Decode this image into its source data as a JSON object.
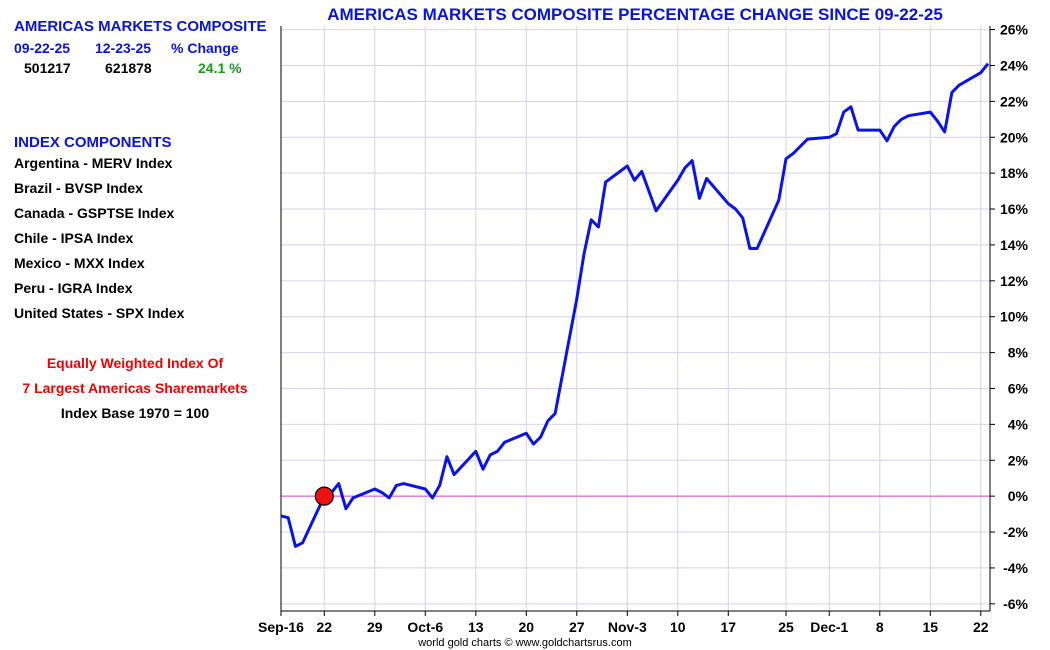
{
  "info": {
    "title": "AMERICAS MARKETS COMPOSITE",
    "col_start": "09-22-25",
    "col_end": "12-23-25",
    "col_change": "% Change",
    "val_start": "501217",
    "val_end": "621878",
    "val_change": "24.1 %",
    "components_title": "INDEX COMPONENTS",
    "components": [
      "Argentina - MERV Index",
      "Brazil - BVSP Index",
      "Canada - GSPTSE Index",
      "Chile - IPSA Index",
      "Mexico - MXX Index",
      "Peru - IGRA Index",
      "United States - SPX Index"
    ],
    "note_line1": "Equally Weighted Index Of",
    "note_line2": "7 Largest Americas Sharemarkets",
    "note_line3": "Index Base 1970 = 100"
  },
  "colors": {
    "title_blue": "#0a14d6",
    "line_blue": "#0a14e6",
    "gain_green": "#1a9a1a",
    "note_red": "#ee0000",
    "zero_line": "#cc44cc",
    "grid": "#d4d4ee",
    "marker_fill": "#ee1111"
  },
  "credit": "world gold charts © www.goldchartsrus.com",
  "chart_data": {
    "type": "line",
    "title": "AMERICAS MARKETS COMPOSITE PERCENTAGE CHANGE SINCE 09-22-25",
    "xlabel": "",
    "ylabel": "",
    "ylim": [
      -6.4,
      26.2
    ],
    "y_ticks": [
      26,
      24,
      22,
      20,
      18,
      16,
      14,
      12,
      10,
      8,
      6,
      4,
      2,
      0,
      -2,
      -4,
      -6
    ],
    "y_tick_labels": [
      "26%",
      "24%",
      "22%",
      "20%",
      "18%",
      "16%",
      "14%",
      "12%",
      "10%",
      "8%",
      "6%",
      "4%",
      "2%",
      "0%",
      "-2%",
      "-4%",
      "-6%"
    ],
    "y_axis_position": "right",
    "x_range": [
      "2025-09-16",
      "2025-12-23"
    ],
    "x_ticks": [
      "2025-09-16",
      "2025-09-22",
      "2025-09-29",
      "2025-10-06",
      "2025-10-13",
      "2025-10-20",
      "2025-10-27",
      "2025-11-03",
      "2025-11-10",
      "2025-11-17",
      "2025-11-25",
      "2025-12-01",
      "2025-12-08",
      "2025-12-15",
      "2025-12-22"
    ],
    "x_tick_labels": [
      "Sep-16",
      "22",
      "29",
      "Oct-6",
      "13",
      "20",
      "27",
      "Nov-3",
      "10",
      "17",
      "25",
      "Dec-1",
      "8",
      "15",
      "22"
    ],
    "grid": true,
    "reference_line": 0,
    "marker": {
      "x": "2025-09-22",
      "y": 0
    },
    "series": [
      {
        "points": [
          [
            "2025-09-16",
            -1.1
          ],
          [
            "2025-09-17",
            -1.2
          ],
          [
            "2025-09-18",
            -2.8
          ],
          [
            "2025-09-19",
            -2.6
          ],
          [
            "2025-09-22",
            0.0
          ],
          [
            "2025-09-23",
            0.2
          ],
          [
            "2025-09-24",
            0.7
          ],
          [
            "2025-09-25",
            -0.7
          ],
          [
            "2025-09-26",
            -0.1
          ],
          [
            "2025-09-29",
            0.4
          ],
          [
            "2025-09-30",
            0.2
          ],
          [
            "2025-10-01",
            -0.1
          ],
          [
            "2025-10-02",
            0.6
          ],
          [
            "2025-10-03",
            0.7
          ],
          [
            "2025-10-06",
            0.4
          ],
          [
            "2025-10-07",
            -0.1
          ],
          [
            "2025-10-08",
            0.6
          ],
          [
            "2025-10-09",
            2.2
          ],
          [
            "2025-10-10",
            1.2
          ],
          [
            "2025-10-13",
            2.5
          ],
          [
            "2025-10-14",
            1.5
          ],
          [
            "2025-10-15",
            2.3
          ],
          [
            "2025-10-16",
            2.5
          ],
          [
            "2025-10-17",
            3.0
          ],
          [
            "2025-10-20",
            3.5
          ],
          [
            "2025-10-21",
            2.9
          ],
          [
            "2025-10-22",
            3.3
          ],
          [
            "2025-10-23",
            4.2
          ],
          [
            "2025-10-24",
            4.6
          ],
          [
            "2025-10-27",
            11.0
          ],
          [
            "2025-10-28",
            13.5
          ],
          [
            "2025-10-29",
            15.4
          ],
          [
            "2025-10-30",
            15.0
          ],
          [
            "2025-10-31",
            17.5
          ],
          [
            "2025-11-03",
            18.4
          ],
          [
            "2025-11-04",
            17.6
          ],
          [
            "2025-11-05",
            18.1
          ],
          [
            "2025-11-06",
            17.0
          ],
          [
            "2025-11-07",
            15.9
          ],
          [
            "2025-11-10",
            17.6
          ],
          [
            "2025-11-11",
            18.3
          ],
          [
            "2025-11-12",
            18.7
          ],
          [
            "2025-11-13",
            16.6
          ],
          [
            "2025-11-14",
            17.7
          ],
          [
            "2025-11-17",
            16.3
          ],
          [
            "2025-11-18",
            16.0
          ],
          [
            "2025-11-19",
            15.5
          ],
          [
            "2025-11-20",
            13.8
          ],
          [
            "2025-11-21",
            13.8
          ],
          [
            "2025-11-24",
            16.5
          ],
          [
            "2025-11-25",
            18.8
          ],
          [
            "2025-11-26",
            19.1
          ],
          [
            "2025-11-28",
            19.9
          ],
          [
            "2025-12-01",
            20.0
          ],
          [
            "2025-12-02",
            20.2
          ],
          [
            "2025-12-03",
            21.4
          ],
          [
            "2025-12-04",
            21.7
          ],
          [
            "2025-12-05",
            20.4
          ],
          [
            "2025-12-08",
            20.4
          ],
          [
            "2025-12-09",
            19.8
          ],
          [
            "2025-12-10",
            20.6
          ],
          [
            "2025-12-11",
            21.0
          ],
          [
            "2025-12-12",
            21.2
          ],
          [
            "2025-12-15",
            21.4
          ],
          [
            "2025-12-16",
            20.9
          ],
          [
            "2025-12-17",
            20.3
          ],
          [
            "2025-12-18",
            22.5
          ],
          [
            "2025-12-19",
            22.9
          ],
          [
            "2025-12-22",
            23.6
          ],
          [
            "2025-12-23",
            24.1
          ]
        ]
      }
    ]
  }
}
